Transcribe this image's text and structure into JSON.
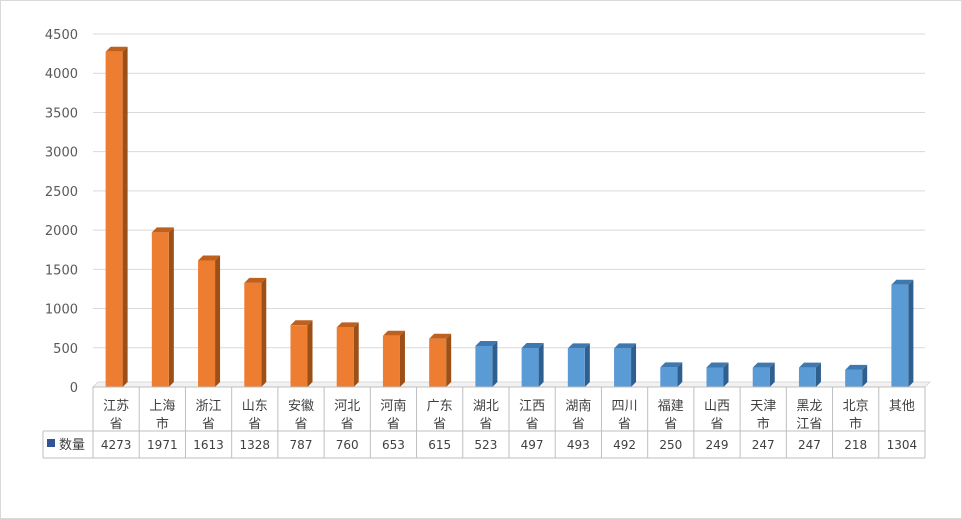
{
  "chart_data": {
    "type": "bar",
    "categories": [
      [
        "江苏",
        "省"
      ],
      [
        "上海",
        "市"
      ],
      [
        "浙江",
        "省"
      ],
      [
        "山东",
        "省"
      ],
      [
        "安徽",
        "省"
      ],
      [
        "河北",
        "省"
      ],
      [
        "河南",
        "省"
      ],
      [
        "广东",
        "省"
      ],
      [
        "湖北",
        "省"
      ],
      [
        "江西",
        "省"
      ],
      [
        "湖南",
        "省"
      ],
      [
        "四川",
        "省"
      ],
      [
        "福建",
        "省"
      ],
      [
        "山西",
        "省"
      ],
      [
        "天津",
        "市"
      ],
      [
        "黑龙",
        "江省"
      ],
      [
        "北京",
        "市"
      ],
      [
        "其他"
      ]
    ],
    "series": [
      {
        "name": "数量",
        "values": [
          4273,
          1971,
          1613,
          1328,
          787,
          760,
          653,
          615,
          523,
          497,
          493,
          492,
          250,
          249,
          247,
          247,
          218,
          1304
        ],
        "point_colors": [
          "orange",
          "orange",
          "orange",
          "orange",
          "orange",
          "orange",
          "orange",
          "orange",
          "blue",
          "blue",
          "blue",
          "blue",
          "blue",
          "blue",
          "blue",
          "blue",
          "blue",
          "blue"
        ]
      }
    ],
    "title": "",
    "xlabel": "",
    "ylabel": "",
    "ylim": [
      0,
      4500
    ],
    "yticks": [
      0,
      500,
      1000,
      1500,
      2000,
      2500,
      3000,
      3500,
      4000,
      4500
    ],
    "grid": true,
    "legend": "data-table-left",
    "data_table": true,
    "bar_style": "3d",
    "colors": {
      "orange": "#ED7D31",
      "orange_side": "#9C4F16",
      "orange_top": "#C0601E",
      "blue": "#5B9BD5",
      "blue_side": "#2E5F8E",
      "blue_top": "#3F78AE",
      "legend_key": "#2F5597",
      "grid": "#d9d9d9",
      "axis": "#bfbfbf"
    }
  }
}
